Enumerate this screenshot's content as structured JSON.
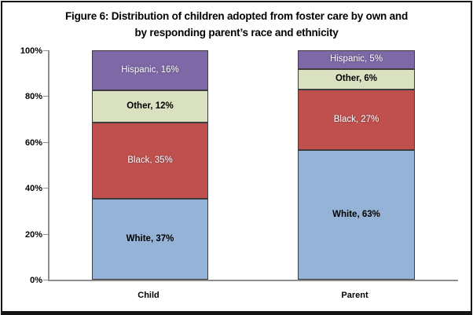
{
  "figure": {
    "title_line1": "Figure 6: Distribution of children adopted from foster care by own and",
    "title_line2": "by responding parent’s race and ethnicity"
  },
  "chart_data": {
    "type": "bar",
    "subtype": "stacked-100-percent",
    "title": "Figure 6: Distribution of children adopted from foster care by own and by responding parent’s race and ethnicity",
    "categories": [
      "Child",
      "Parent"
    ],
    "series": [
      {
        "name": "White",
        "values": [
          37,
          63
        ],
        "color": "#95B3D7",
        "label_color": "#000000",
        "label_style": "dark"
      },
      {
        "name": "Black",
        "values": [
          35,
          27
        ],
        "color": "#C0504D",
        "label_color": "#FFFFFF",
        "label_style": "light"
      },
      {
        "name": "Other",
        "values": [
          12,
          6
        ],
        "color": "#D9E1C1",
        "label_color": "#000000",
        "label_style": "dark"
      },
      {
        "name": "Hispanic",
        "values": [
          16,
          5
        ],
        "color": "#7E69A6",
        "label_color": "#FFFFFF",
        "label_style": "light"
      }
    ],
    "stack_order_top_to_bottom": [
      "Hispanic",
      "Other",
      "Black",
      "White"
    ],
    "label_format": "{name}, {value}%",
    "xlabel": "",
    "ylabel": "",
    "ylim": [
      0,
      100
    ],
    "y_ticks": [
      "0%",
      "20%",
      "40%",
      "60%",
      "80%",
      "100%"
    ],
    "grid": false,
    "legend": "none",
    "axis_color": "#8E8E8E"
  }
}
